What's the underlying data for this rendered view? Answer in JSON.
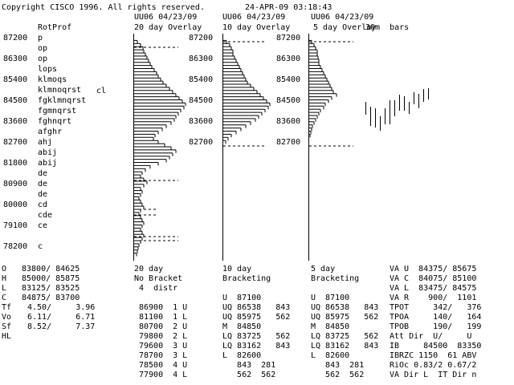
{
  "header": {
    "copyright": "Copyright CISCO 1996. All rights reserved.",
    "datetime": "24-APR-09 03:18:43",
    "panel_headers": [
      "UU06 04/23/09",
      "UU06 04/23/09",
      "UU06 04/23/09"
    ],
    "panel_titles": [
      "20 day Overlay",
      "10 day Overlay",
      "5 day Overlay"
    ],
    "bars_label": "30m  bars"
  },
  "profile": {
    "title": "RotProf",
    "prices": [
      "87200",
      "86300",
      "85400",
      "84500",
      "83600",
      "82700",
      "81800",
      "80900",
      "80000",
      "79100",
      "78200"
    ],
    "letters": [
      "p",
      "op",
      "op",
      "lops",
      "klmoqs",
      "klmnoqrst",
      "fgklmnqrst",
      "fgmnqrst",
      "fghnqrt",
      "afghr",
      "ahj",
      "abij",
      "abij",
      "de",
      "de",
      "de",
      "cd",
      "cde",
      "ce",
      "c"
    ],
    "cl_label": "cl"
  },
  "panel_prices": {
    "p10": [
      "87200",
      "86300",
      "85400",
      "84500",
      "83600",
      "82700"
    ],
    "p5": [
      "87200",
      "86300",
      "85400",
      "84500",
      "83600",
      "82700"
    ]
  },
  "histograms": {
    "p20": [
      0,
      4,
      8,
      11,
      12,
      14,
      16,
      18,
      20,
      22,
      25,
      28,
      30,
      33,
      36,
      40,
      44,
      48,
      52,
      56,
      60,
      64,
      62,
      58,
      55,
      52,
      50,
      46,
      40,
      35,
      30,
      26,
      24,
      30,
      38,
      46,
      52,
      48,
      44,
      40,
      30,
      20,
      14,
      10,
      8,
      12,
      16,
      12,
      8,
      10,
      8,
      6,
      8,
      10,
      12,
      8,
      6,
      8,
      10,
      12,
      10,
      8,
      10,
      12,
      10,
      8,
      6,
      5,
      4,
      3
    ],
    "p10": [
      0,
      4,
      8,
      10,
      12,
      12,
      14,
      16,
      18,
      20,
      22,
      24,
      26,
      28,
      30,
      34,
      38,
      42,
      46,
      50,
      54,
      58,
      56,
      52,
      48,
      44,
      40,
      34,
      28,
      22,
      16,
      10,
      6,
      3
    ],
    "p5": [
      0,
      3,
      6,
      8,
      10,
      10,
      11,
      12,
      12,
      14,
      16,
      18,
      20,
      22,
      24,
      26,
      28,
      30,
      34,
      28,
      24,
      20,
      18,
      14,
      12,
      10,
      8,
      6,
      4,
      3,
      2,
      1
    ]
  },
  "bar_chart": {
    "bars": [
      [
        127,
        143
      ],
      [
        133,
        157
      ],
      [
        135,
        159
      ],
      [
        145,
        163
      ],
      [
        135,
        155
      ],
      [
        125,
        155
      ],
      [
        125,
        145
      ],
      [
        118,
        138
      ],
      [
        120,
        138
      ],
      [
        127,
        142
      ],
      [
        115,
        130
      ],
      [
        117,
        135
      ],
      [
        111,
        127
      ],
      [
        110,
        124
      ]
    ]
  },
  "stats": {
    "left": [
      {
        "label": "O",
        "value": "83800/ 84625"
      },
      {
        "label": "H",
        "value": "85000/ 85875"
      },
      {
        "label": "L",
        "value": "83125/ 83525"
      },
      {
        "label": "C",
        "value": "84875/ 83700"
      },
      {
        "label": "Tf",
        "value": "4.50/     3.96"
      },
      {
        "label": "Vo",
        "value": "6.11/     6.71"
      },
      {
        "label": "Sf",
        "value": "8.52/     7.37"
      },
      {
        "label": "HL",
        "value": ""
      }
    ],
    "p20": {
      "title": "20 day",
      "subtitle": "No Bracket",
      "distr": " 4  distr",
      "rows": [
        "86900  1 U",
        "81100  1 L",
        "80700  2 U",
        "79800  2 L",
        "79600  3 U",
        "78700  3 L",
        "78500  4 U",
        "77900  4 L"
      ]
    },
    "p10": {
      "title": "10 day",
      "subtitle": "Bracketing",
      "rows": [
        "U  87100",
        "UQ 86538   843",
        "UQ 85975   562",
        "M  84850",
        "LQ 83725   562",
        "LQ 83162   843",
        "L  82600",
        "   843  281",
        "   562  562"
      ]
    },
    "p5": {
      "title": "5 day",
      "subtitle": "Bracketing",
      "rows": [
        "U  87100",
        "UQ 86538   843",
        "UQ 85975   562",
        "M  84850",
        "LQ 83725   562",
        "LQ 83162   843",
        "L  82600",
        "   843  281",
        "   562  562"
      ]
    },
    "right": [
      "VA U  84375/ 85675",
      "VA C  84075/ 85100",
      "VA L  83475/ 84575",
      "VA R    900/  1101",
      "TPOT     342/   376",
      "TPOA     140/   164",
      "TPOB     190/   199",
      "Att Dir  U/     U",
      "IB     84500  83350",
      "IBRZC 1150  61 ABV",
      "RiOc 0.83/2 0.67/2",
      "VA Dir L  IT Dir n"
    ]
  }
}
